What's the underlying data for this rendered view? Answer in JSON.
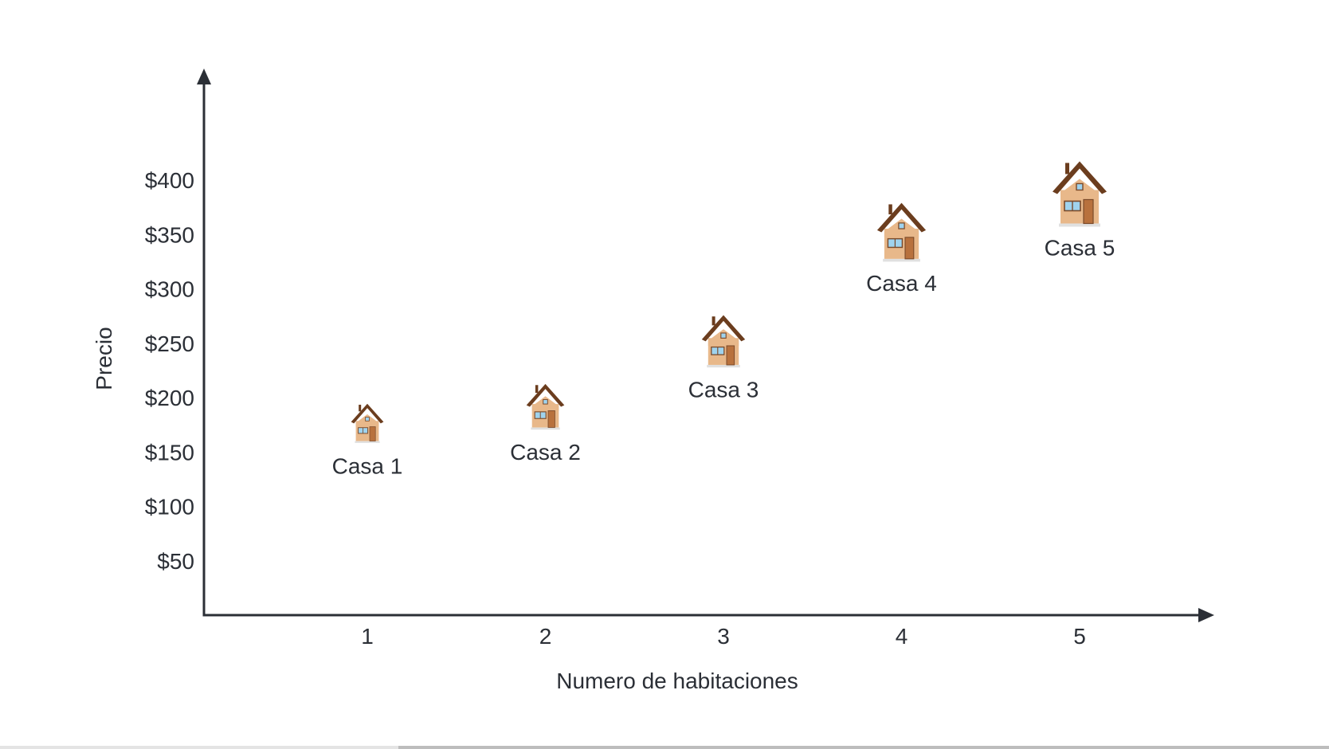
{
  "chart_data": {
    "type": "scatter",
    "title": "",
    "xlabel": "Numero de habitaciones",
    "ylabel": "Precio",
    "x_ticks": [
      "1",
      "2",
      "3",
      "4",
      "5"
    ],
    "y_ticks": [
      "$50",
      "$100",
      "$150",
      "$200",
      "$250",
      "$300",
      "$350",
      "$400"
    ],
    "y_tick_values": [
      50,
      100,
      150,
      200,
      250,
      300,
      350,
      400
    ],
    "xlim": [
      0,
      5.7
    ],
    "ylim": [
      0,
      500
    ],
    "grid": false,
    "marker_icon": "house-icon",
    "points": [
      {
        "label": "Casa 1",
        "x": 1,
        "y": 175
      },
      {
        "label": "Casa 2",
        "x": 2,
        "y": 190
      },
      {
        "label": "Casa 3",
        "x": 3,
        "y": 250
      },
      {
        "label": "Casa 4",
        "x": 4,
        "y": 350
      },
      {
        "label": "Casa 5",
        "x": 5,
        "y": 385
      }
    ],
    "colors": {
      "axis": "#2b2f36",
      "text": "#2b2f36",
      "house_wall": "#e8b88a",
      "house_roof": "#6b3d1e",
      "house_window": "#9fd3ee",
      "house_door": "#b8713d"
    }
  }
}
